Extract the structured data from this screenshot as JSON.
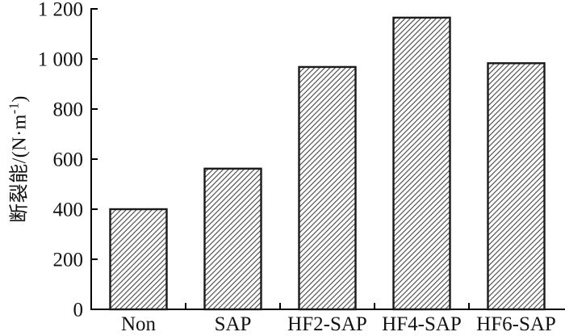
{
  "chart_data": {
    "type": "bar",
    "title": "",
    "categories": [
      "Non",
      "SAP",
      "HF2-SAP",
      "HF4-SAP",
      "HF6-SAP"
    ],
    "values": [
      400,
      562,
      968,
      1165,
      983
    ],
    "xlabel": "",
    "ylabel": "断裂能/(N·m⁻¹)",
    "ylabel_parts": {
      "main": "断裂能/(N·m",
      "sup": "-1",
      "close": ")"
    },
    "ylim": [
      0,
      1200
    ],
    "ytick_step": 200,
    "ytick_labels": [
      "0",
      "200",
      "400",
      "600",
      "800",
      "1 000",
      "1 200"
    ],
    "grid": false,
    "legend": "none",
    "bar_fill": "#ffffff",
    "bar_hatch": "diagonal-forward-slash",
    "bar_edge_color": "#1a1a1a",
    "hatch_color": "#3f3f3f",
    "axis_color": "#000000",
    "text_color": "#111111",
    "background": "#ffffff"
  }
}
